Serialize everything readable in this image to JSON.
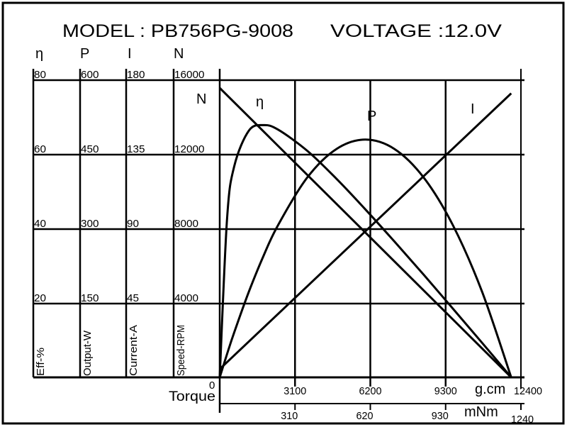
{
  "header": {
    "model_label": "MODEL : PB756PG-9008",
    "voltage_label": "VOLTAGE :12.0V"
  },
  "axes": {
    "symbols": [
      "η",
      "P",
      "I",
      "N"
    ],
    "names": [
      "Eff-%",
      "Output-W",
      "Current-A",
      "Speed-RPM"
    ],
    "ticks": [
      [
        "80",
        "60",
        "40",
        "20"
      ],
      [
        "600",
        "450",
        "300",
        "150"
      ],
      [
        "180",
        "135",
        "90",
        "45"
      ],
      [
        "16000",
        "12000",
        "8000",
        "4000"
      ]
    ],
    "torque_label": "Torque",
    "zero_label": "0",
    "gcm_unit": "g.cm",
    "gcm_ticks": [
      "3100",
      "6200",
      "9300",
      "12400"
    ],
    "mnm_unit": "mNm",
    "mnm_ticks": [
      "310",
      "620",
      "930",
      "1240"
    ]
  },
  "curve_labels": {
    "speed": "N",
    "efficiency": "η",
    "output": "P",
    "current": "I"
  },
  "chart_data": {
    "type": "line",
    "title": "MODEL : PB756PG-9008  VOLTAGE :12.0V",
    "xlabel": "Torque (g.cm / mNm)",
    "xlim": [
      0,
      12400
    ],
    "ylims": {
      "efficiency": [
        0,
        80
      ],
      "output": [
        0,
        600
      ],
      "current": [
        0,
        180
      ],
      "speed": [
        0,
        16000
      ]
    },
    "grid": true,
    "x": [
      0,
      300,
      600,
      1200,
      1800,
      2400,
      3600,
      4800,
      6000,
      7200,
      8400,
      9600,
      10800,
      12000
    ],
    "series": [
      {
        "name": "N",
        "unit": "RPM",
        "values": [
          15580,
          15190,
          14801,
          14022,
          13243,
          12464,
          10906,
          9348,
          7790,
          6232,
          4674,
          3116,
          1558,
          0
        ]
      },
      {
        "name": "I",
        "unit": "A",
        "values": [
          5,
          9.2,
          13.4,
          21.7,
          30.1,
          38.4,
          55.1,
          71.8,
          88.5,
          105.2,
          121.9,
          138.6,
          155.3,
          172
        ]
      },
      {
        "name": "P",
        "unit": "W",
        "values": [
          0,
          46.8,
          91.2,
          172.8,
          244.8,
          307.2,
          403.2,
          460.8,
          480,
          460.8,
          403.2,
          307.2,
          172.8,
          0
        ]
      },
      {
        "name": "η",
        "unit": "%",
        "values": [
          0,
          42.5,
          56.9,
          66.4,
          67.9,
          66.7,
          61,
          53.5,
          45.2,
          36.5,
          27.6,
          18.5,
          9.3,
          0
        ]
      }
    ]
  }
}
